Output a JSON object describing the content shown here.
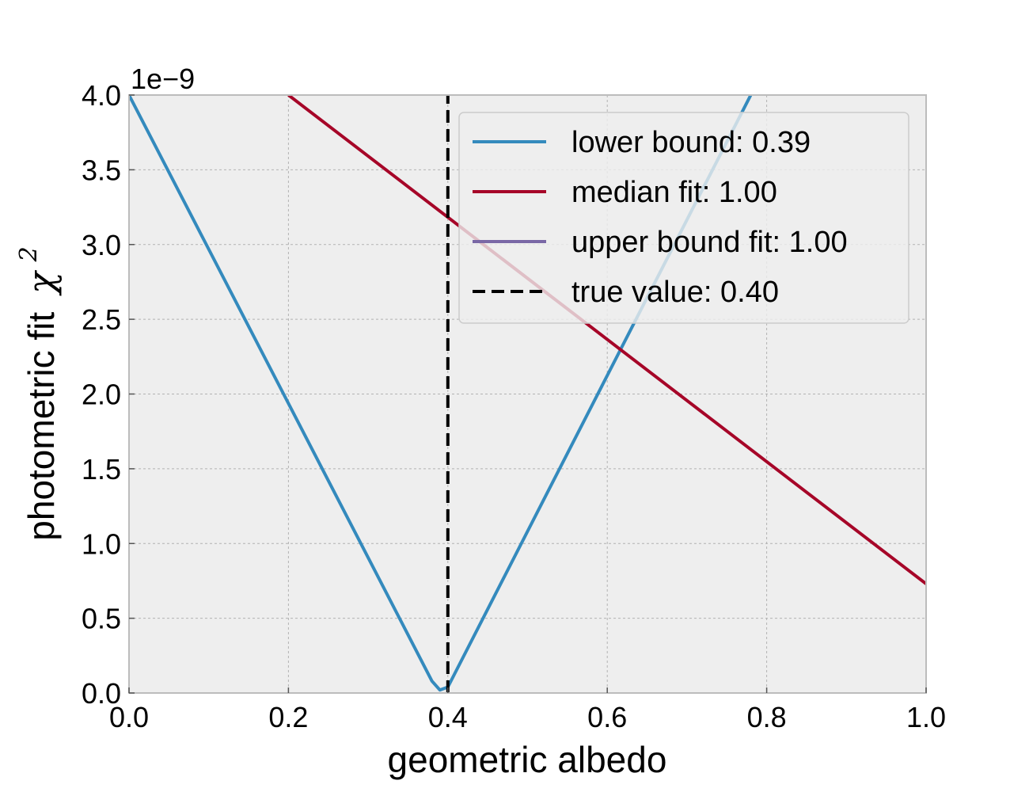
{
  "chart_data": {
    "type": "line",
    "xlabel": "geometric albedo",
    "ylabel": "photometric fit",
    "ylabel_symbol": "χ",
    "ylabel_superscript": "2",
    "y_offset_text": "1e−9",
    "xlim": [
      0.0,
      1.0
    ],
    "ylim": [
      0.0,
      4.0
    ],
    "x_ticks": [
      "0.0",
      "0.2",
      "0.4",
      "0.6",
      "0.8",
      "1.0"
    ],
    "y_ticks": [
      "0.0",
      "0.5",
      "1.0",
      "1.5",
      "2.0",
      "2.5",
      "3.0",
      "3.5",
      "4.0"
    ],
    "grid": true,
    "legend_position": "top-right",
    "series": [
      {
        "name": "lower bound: 0.39",
        "color": "#348ABD",
        "style": "solid",
        "x": [
          0.0,
          0.38,
          0.39,
          0.4,
          0.78
        ],
        "y": [
          4.0,
          0.08,
          0.02,
          0.04,
          4.0
        ]
      },
      {
        "name": "median fit: 1.00",
        "color": "#A60628",
        "style": "solid",
        "x": [
          0.2,
          1.0
        ],
        "y": [
          4.0,
          0.73
        ]
      },
      {
        "name": "upper bound fit: 1.00",
        "color": "#7A68A6",
        "style": "solid",
        "x": [],
        "y": []
      },
      {
        "name": "true value: 0.40",
        "color": "#000000",
        "style": "dashed",
        "x": [
          0.4,
          0.4
        ],
        "y": [
          0.0,
          4.0
        ]
      }
    ]
  }
}
